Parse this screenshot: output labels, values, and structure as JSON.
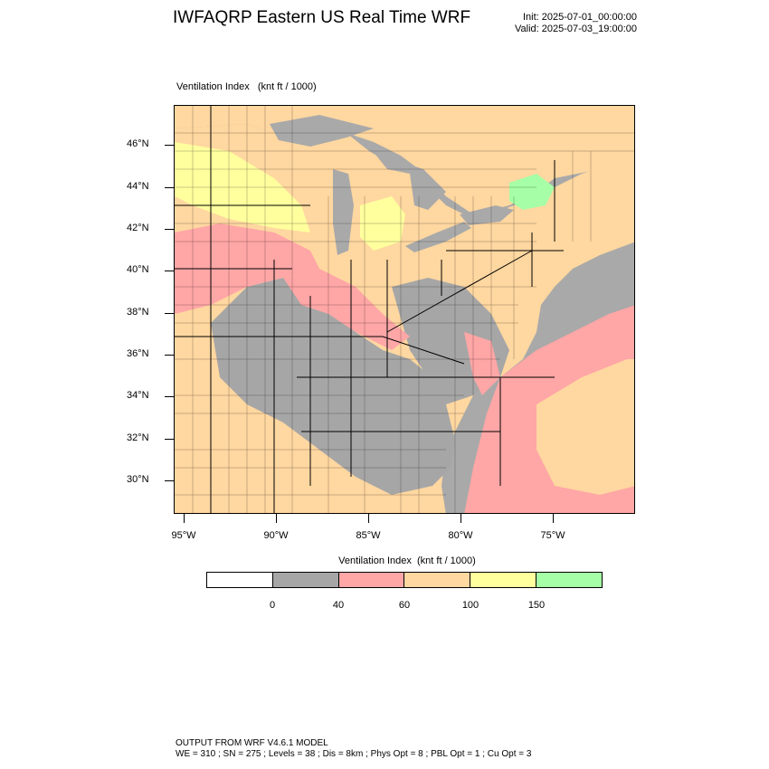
{
  "header": {
    "title": "IWFAQRP Eastern US Real Time WRF",
    "init": "Init: 2025-07-01_00:00:00",
    "valid": "Valid: 2025-07-03_19:00:00"
  },
  "field": {
    "label": "Ventilation Index   (knt ft / 1000)",
    "units": "knt ft / 1000"
  },
  "map": {
    "lat_labels": [
      "46°N",
      "44°N",
      "42°N",
      "40°N",
      "38°N",
      "36°N",
      "34°N",
      "32°N",
      "30°N"
    ],
    "lon_labels": [
      "95°W",
      "90°W",
      "85°W",
      "80°W",
      "75°W"
    ]
  },
  "colorbar": {
    "title": "Ventilation Index  (knt ft / 1000)",
    "colors": [
      "#ffffff",
      "#a6a6a6",
      "#ffa6a6",
      "#ffd7a0",
      "#ffff9e",
      "#a6ffa6"
    ],
    "labels": [
      "0",
      "40",
      "60",
      "100",
      "150"
    ]
  },
  "map_colors": {
    "land_default": "#ffd7a0",
    "low": "#a6a6a6",
    "moderate": "#ffa6a6",
    "good": "#ffff9e",
    "excellent": "#a6ffa6",
    "water": "#a9a9a9"
  },
  "footer": {
    "line1": "OUTPUT FROM WRF V4.6.1 MODEL",
    "line2": "WE = 310 ; SN = 275 ; Levels = 38 ; Dis = 8km ; Phys Opt = 8 ; PBL Opt = 1 ; Cu Opt = 3"
  }
}
